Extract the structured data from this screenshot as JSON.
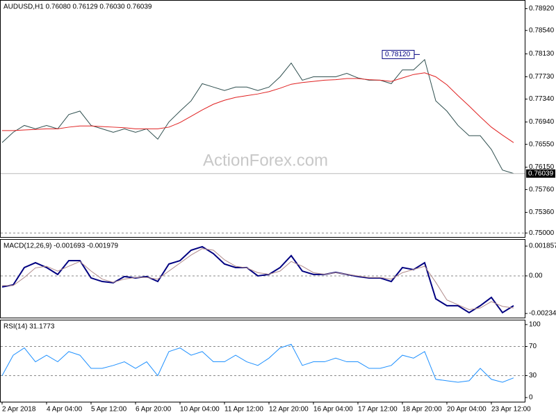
{
  "chart_data": [
    {
      "type": "line",
      "title": "AUDUSD,H1  0.76080 0.76129 0.76030 0.76039",
      "watermark": "ActionForex.com",
      "ylim": [
        0.7493,
        0.7906
      ],
      "yticks": [
        {
          "value": 0.7892,
          "label": "0.78920"
        },
        {
          "value": 0.7854,
          "label": "0.78540"
        },
        {
          "value": 0.7813,
          "label": "0.78130"
        },
        {
          "value": 0.7773,
          "label": "0.77730"
        },
        {
          "value": 0.7734,
          "label": "0.77340"
        },
        {
          "value": 0.7694,
          "label": "0.76940"
        },
        {
          "value": 0.7655,
          "label": "0.76550"
        },
        {
          "value": 0.7615,
          "label": "0.76150"
        },
        {
          "value": 0.7576,
          "label": "0.75760"
        },
        {
          "value": 0.7536,
          "label": "0.75360"
        },
        {
          "value": 0.75,
          "label": "0.75000"
        }
      ],
      "hlines": [
        0.75
      ],
      "price_label": {
        "value": 0.76039,
        "label": "0.76039"
      },
      "high_label": {
        "value": 0.7812,
        "label": "0.78120"
      },
      "series": [
        {
          "color": "#2f4f4f",
          "width": 1,
          "values": [
            0.7658,
            0.7676,
            0.7688,
            0.7682,
            0.7688,
            0.7682,
            0.7707,
            0.7713,
            0.7688,
            0.7682,
            0.7676,
            0.7682,
            0.7676,
            0.7682,
            0.7664,
            0.7694,
            0.7713,
            0.7731,
            0.7761,
            0.7755,
            0.7749,
            0.7755,
            0.7755,
            0.7749,
            0.7755,
            0.7773,
            0.7797,
            0.7767,
            0.7773,
            0.7773,
            0.7773,
            0.7779,
            0.7771,
            0.7767,
            0.7767,
            0.7761,
            0.7785,
            0.7785,
            0.7803,
            0.7731,
            0.7713,
            0.7688,
            0.767,
            0.767,
            0.7646,
            0.761,
            0.7604
          ]
        },
        {
          "color": "#e02020",
          "width": 1,
          "values": [
            0.7679,
            0.7679,
            0.768,
            0.7681,
            0.7682,
            0.7682,
            0.7685,
            0.7687,
            0.7687,
            0.7686,
            0.7685,
            0.7684,
            0.7682,
            0.7682,
            0.7682,
            0.7685,
            0.7693,
            0.7704,
            0.7715,
            0.7725,
            0.7732,
            0.7737,
            0.774,
            0.7743,
            0.7747,
            0.7753,
            0.776,
            0.7763,
            0.7765,
            0.7767,
            0.7768,
            0.777,
            0.777,
            0.7768,
            0.7767,
            0.7765,
            0.7771,
            0.7777,
            0.778,
            0.7773,
            0.7759,
            0.774,
            0.7722,
            0.7703,
            0.7685,
            0.7671,
            0.7658
          ]
        }
      ]
    },
    {
      "type": "line",
      "title": "MACD(12,26,9) -0.001693 -0.001979",
      "ylim": [
        -0.0026,
        0.00225
      ],
      "yticks": [
        0.001857,
        {
          "value": 0,
          "label": "0.00"
        },
        -0.002343
      ],
      "hlines": [
        0
      ],
      "series": [
        {
          "color": "#000080",
          "width": 2,
          "values": [
            -0.00069,
            -0.00056,
            0.00052,
            0.00082,
            0.00052,
            9e-05,
            0.00095,
            0.00095,
            -0.00013,
            -0.00035,
            -0.00043,
            -4e-05,
            -0.00013,
            -4e-05,
            -0.00035,
            0.00074,
            0.00095,
            0.0016,
            0.00182,
            0.00139,
            0.00074,
            0.00052,
            0.00052,
            0,
            9e-05,
            0.00052,
            0.00126,
            0.0003,
            9e-05,
            9e-05,
            0.00022,
            9e-05,
            -4e-05,
            -0.00013,
            -0.00013,
            -0.00035,
            0.00052,
            0.00039,
            0.00082,
            -0.00143,
            -0.00186,
            -0.00186,
            -0.00229,
            -0.00186,
            -0.00134,
            -0.00229,
            -0.00186
          ]
        },
        {
          "color": "#b08a8a",
          "width": 1,
          "values": [
            -0.0006,
            -0.0006,
            -0.0001,
            0.0005,
            0.0006,
            0.0003,
            0.0006,
            0.0009,
            0.0003,
            -0.0002,
            -0.0004,
            -0.0002,
            -0.0001,
            -0.0001,
            -0.0002,
            0.0003,
            0.0008,
            0.0013,
            0.0017,
            0.0016,
            0.001,
            0.0006,
            0.0005,
            0.0002,
            0.0001,
            0.0003,
            0.0009,
            0.0006,
            0.0002,
            0.0001,
            0.0002,
            0.0001,
            0,
            -0.0001,
            -0.0001,
            -0.0002,
            0.0002,
            0.0004,
            0.0006,
            -0.0004,
            -0.0015,
            -0.0018,
            -0.0021,
            -0.002,
            -0.0016,
            -0.0019,
            -0.002
          ]
        }
      ]
    },
    {
      "type": "line",
      "title": "RSI(14) 31.1773",
      "ylim": [
        -5.7,
        105.7
      ],
      "yticks": [
        100,
        70,
        30,
        0
      ],
      "hlines": [
        70,
        30
      ],
      "categories": [
        "2 Apr 2018",
        null,
        null,
        null,
        "4 Apr 04:00",
        null,
        null,
        null,
        "5 Apr 12:00",
        null,
        null,
        null,
        "6 Apr 20:00",
        null,
        null,
        null,
        "10 Apr 04:00",
        null,
        null,
        null,
        "11 Apr 12:00",
        null,
        null,
        null,
        "12 Apr 20:00",
        null,
        null,
        null,
        "16 Apr 04:00",
        null,
        null,
        null,
        "17 Apr 12:00",
        null,
        null,
        null,
        "18 Apr 20:00",
        null,
        null,
        null,
        "20 Apr 04:00",
        null,
        null,
        null,
        "23 Apr 12:00",
        null,
        null
      ],
      "series": [
        {
          "color": "#1e90ff",
          "width": 1,
          "values": [
            30,
            58,
            68,
            49,
            58,
            49,
            63,
            58,
            40,
            40,
            44,
            49,
            40,
            49,
            30,
            63,
            68,
            58,
            63,
            49,
            49,
            58,
            49,
            44,
            54,
            68,
            73,
            44,
            49,
            49,
            54,
            49,
            49,
            40,
            40,
            44,
            58,
            54,
            63,
            25,
            23,
            21,
            23,
            40,
            25,
            21,
            27
          ]
        }
      ]
    }
  ]
}
